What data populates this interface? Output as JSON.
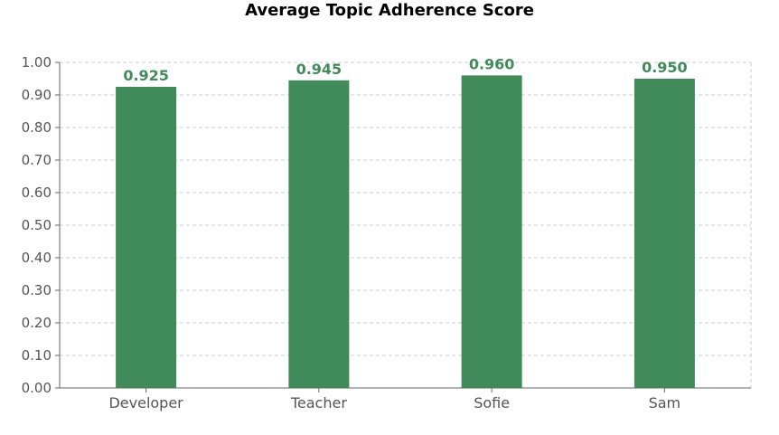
{
  "chart_data": {
    "type": "bar",
    "title": "Average Topic Adherence Score",
    "xlabel": "",
    "ylabel": "",
    "categories": [
      "Developer",
      "Teacher",
      "Sofie",
      "Sam"
    ],
    "values": [
      0.925,
      0.945,
      0.96,
      0.95
    ],
    "value_labels": [
      "0.925",
      "0.945",
      "0.960",
      "0.950"
    ],
    "ylim": [
      0,
      1
    ],
    "yticks": [
      0.0,
      0.1,
      0.2,
      0.3,
      0.4,
      0.5,
      0.6,
      0.7,
      0.8,
      0.9,
      1.0
    ],
    "ytick_labels": [
      "0.00",
      "0.10",
      "0.20",
      "0.30",
      "0.40",
      "0.50",
      "0.60",
      "0.70",
      "0.80",
      "0.90",
      "1.00"
    ],
    "grid": true,
    "legend": "none",
    "colors": {
      "bar": "#418a5a",
      "data_label": "#418a5a",
      "grid": "#cccccc",
      "axis": "#666666"
    }
  }
}
